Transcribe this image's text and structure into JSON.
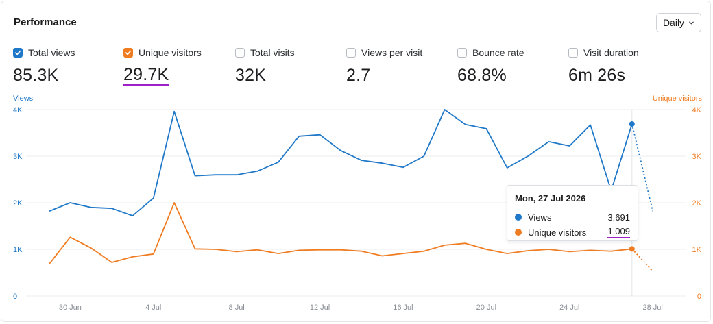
{
  "header": {
    "title": "Performance",
    "interval": "Daily"
  },
  "colors": {
    "views": "#1f78c8",
    "visitors": "#f07c22",
    "highlight": "#a020c8",
    "grid": "#eceef1",
    "tick": "#8a8f96"
  },
  "metrics": [
    {
      "label": "Total views",
      "value": "85.3K",
      "checked": true,
      "color": "#1f78c8"
    },
    {
      "label": "Unique visitors",
      "value": "29.7K",
      "checked": true,
      "color": "#f07c22"
    },
    {
      "label": "Total visits",
      "value": "32K",
      "checked": false
    },
    {
      "label": "Views per visit",
      "value": "2.7",
      "checked": false
    },
    {
      "label": "Bounce rate",
      "value": "68.8%",
      "checked": false
    },
    {
      "label": "Visit duration",
      "value": "6m 26s",
      "checked": false
    }
  ],
  "tooltip": {
    "date": "Mon, 27 Jul 2026",
    "rows": [
      {
        "name": "Views",
        "value": "3,691"
      },
      {
        "name": "Unique visitors",
        "value": "1,009"
      }
    ]
  },
  "chart_data": {
    "type": "line",
    "left_axis_title": "Views",
    "right_axis_title": "Unique visitors",
    "ylim": [
      0,
      4000
    ],
    "y_ticks": [
      0,
      1000,
      2000,
      3000,
      4000
    ],
    "y_tick_labels": [
      "0",
      "1K",
      "2K",
      "3K",
      "4K"
    ],
    "x_ticks": [
      "30 Jun",
      "4 Jul",
      "8 Jul",
      "12 Jul",
      "16 Jul",
      "20 Jul",
      "24 Jul",
      "28 Jul"
    ],
    "x": [
      "29 Jun",
      "30 Jun",
      "1 Jul",
      "2 Jul",
      "3 Jul",
      "4 Jul",
      "5 Jul",
      "6 Jul",
      "7 Jul",
      "8 Jul",
      "9 Jul",
      "10 Jul",
      "11 Jul",
      "12 Jul",
      "13 Jul",
      "14 Jul",
      "15 Jul",
      "16 Jul",
      "17 Jul",
      "18 Jul",
      "19 Jul",
      "20 Jul",
      "21 Jul",
      "22 Jul",
      "23 Jul",
      "24 Jul",
      "25 Jul",
      "26 Jul",
      "27 Jul",
      "28 Jul"
    ],
    "series": [
      {
        "name": "Views",
        "axis": "left",
        "values": [
          1820,
          2000,
          1900,
          1880,
          1720,
          2100,
          3960,
          2580,
          2600,
          2600,
          2680,
          2870,
          3430,
          3460,
          3120,
          2910,
          2850,
          2760,
          3000,
          4000,
          3680,
          3590,
          2750,
          3000,
          3310,
          3220,
          3670,
          2260,
          3691,
          1820
        ],
        "partial_last": true
      },
      {
        "name": "Unique visitors",
        "axis": "right",
        "values": [
          690,
          1260,
          1030,
          720,
          840,
          900,
          2000,
          1010,
          1000,
          950,
          990,
          910,
          980,
          990,
          990,
          960,
          860,
          910,
          960,
          1090,
          1130,
          1000,
          910,
          970,
          1000,
          950,
          980,
          960,
          1009,
          530
        ],
        "partial_last": true
      }
    ],
    "selected_index": 28,
    "grid": true,
    "legend": "none"
  }
}
